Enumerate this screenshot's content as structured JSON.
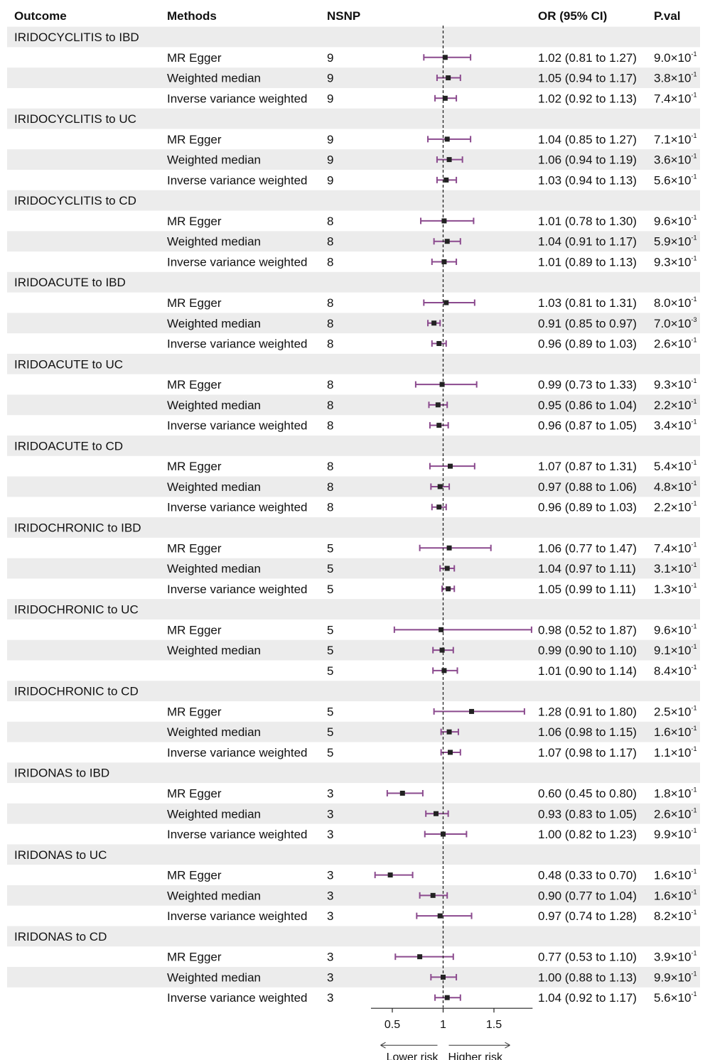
{
  "chart_data": {
    "type": "forest",
    "headers": {
      "outcome": "Outcome",
      "methods": "Methods",
      "nsnp": "NSNP",
      "or": "OR (95% CI)",
      "pval": "P.val"
    },
    "reference_line": 1,
    "xlim": [
      0.29,
      1.88
    ],
    "xticks": [
      {
        "value": 0.5,
        "label": "0.5"
      },
      {
        "value": 1,
        "label": "1"
      },
      {
        "value": 1.5,
        "label": "1.5"
      }
    ],
    "lower_label": "Lower risk",
    "higher_label": "Higher risk",
    "colors": {
      "ci": "#8B4A8E",
      "point": "#222222",
      "shade": "#ececec",
      "ref": "#222222"
    },
    "groups": [
      {
        "outcome": "IRIDOCYCLITIS to IBD",
        "rows": [
          {
            "method": "MR Egger",
            "nsnp": "9",
            "or": 1.02,
            "lo": 0.81,
            "hi": 1.27,
            "or_text": "1.02 (0.81 to 1.27)",
            "p_base": "9.0×10",
            "p_exp": "-1"
          },
          {
            "method": "Weighted median",
            "nsnp": "9",
            "or": 1.05,
            "lo": 0.94,
            "hi": 1.17,
            "or_text": "1.05 (0.94 to 1.17)",
            "p_base": "3.8×10",
            "p_exp": "-1"
          },
          {
            "method": "Inverse variance weighted",
            "nsnp": "9",
            "or": 1.02,
            "lo": 0.92,
            "hi": 1.13,
            "or_text": "1.02 (0.92 to 1.13)",
            "p_base": "7.4×10",
            "p_exp": "-1"
          }
        ]
      },
      {
        "outcome": "IRIDOCYCLITIS to UC",
        "rows": [
          {
            "method": "MR Egger",
            "nsnp": "9",
            "or": 1.04,
            "lo": 0.85,
            "hi": 1.27,
            "or_text": "1.04 (0.85 to 1.27)",
            "p_base": "7.1×10",
            "p_exp": "-1"
          },
          {
            "method": "Weighted median",
            "nsnp": "9",
            "or": 1.06,
            "lo": 0.94,
            "hi": 1.19,
            "or_text": "1.06 (0.94 to 1.19)",
            "p_base": "3.6×10",
            "p_exp": "-1"
          },
          {
            "method": "Inverse variance weighted",
            "nsnp": "9",
            "or": 1.03,
            "lo": 0.94,
            "hi": 1.13,
            "or_text": "1.03 (0.94 to 1.13)",
            "p_base": "5.6×10",
            "p_exp": "-1"
          }
        ]
      },
      {
        "outcome": "IRIDOCYCLITIS to CD",
        "rows": [
          {
            "method": "MR Egger",
            "nsnp": "8",
            "or": 1.01,
            "lo": 0.78,
            "hi": 1.3,
            "or_text": "1.01 (0.78 to 1.30)",
            "p_base": "9.6×10",
            "p_exp": "-1"
          },
          {
            "method": "Weighted median",
            "nsnp": "8",
            "or": 1.04,
            "lo": 0.91,
            "hi": 1.17,
            "or_text": "1.04 (0.91 to 1.17)",
            "p_base": "5.9×10",
            "p_exp": "-1"
          },
          {
            "method": "Inverse variance weighted",
            "nsnp": "8",
            "or": 1.01,
            "lo": 0.89,
            "hi": 1.13,
            "or_text": "1.01 (0.89 to 1.13)",
            "p_base": "9.3×10",
            "p_exp": "-1"
          }
        ]
      },
      {
        "outcome": "IRIDOACUTE to IBD",
        "rows": [
          {
            "method": "MR Egger",
            "nsnp": "8",
            "or": 1.03,
            "lo": 0.81,
            "hi": 1.31,
            "or_text": "1.03 (0.81 to 1.31)",
            "p_base": "8.0×10",
            "p_exp": "-1"
          },
          {
            "method": "Weighted median",
            "nsnp": "8",
            "or": 0.91,
            "lo": 0.85,
            "hi": 0.97,
            "or_text": "0.91 (0.85 to 0.97)",
            "p_base": "7.0×10",
            "p_exp": "-3"
          },
          {
            "method": "Inverse variance weighted",
            "nsnp": "8",
            "or": 0.96,
            "lo": 0.89,
            "hi": 1.03,
            "or_text": "0.96 (0.89 to 1.03)",
            "p_base": "2.6×10",
            "p_exp": "-1"
          }
        ]
      },
      {
        "outcome": "IRIDOACUTE to UC",
        "rows": [
          {
            "method": "MR Egger",
            "nsnp": "8",
            "or": 0.99,
            "lo": 0.73,
            "hi": 1.33,
            "or_text": "0.99 (0.73 to 1.33)",
            "p_base": "9.3×10",
            "p_exp": "-1"
          },
          {
            "method": "Weighted median",
            "nsnp": "8",
            "or": 0.95,
            "lo": 0.86,
            "hi": 1.04,
            "or_text": "0.95 (0.86 to 1.04)",
            "p_base": "2.2×10",
            "p_exp": "-1"
          },
          {
            "method": "Inverse variance weighted",
            "nsnp": "8",
            "or": 0.96,
            "lo": 0.87,
            "hi": 1.05,
            "or_text": "0.96 (0.87 to 1.05)",
            "p_base": "3.4×10",
            "p_exp": "-1"
          }
        ]
      },
      {
        "outcome": "IRIDOACUTE to CD",
        "rows": [
          {
            "method": "MR Egger",
            "nsnp": "8",
            "or": 1.07,
            "lo": 0.87,
            "hi": 1.31,
            "or_text": "1.07 (0.87 to 1.31)",
            "p_base": "5.4×10",
            "p_exp": "-1"
          },
          {
            "method": "Weighted median",
            "nsnp": "8",
            "or": 0.97,
            "lo": 0.88,
            "hi": 1.06,
            "or_text": "0.97 (0.88 to 1.06)",
            "p_base": "4.8×10",
            "p_exp": "-1"
          },
          {
            "method": "Inverse variance weighted",
            "nsnp": "8",
            "or": 0.96,
            "lo": 0.89,
            "hi": 1.03,
            "or_text": "0.96 (0.89 to 1.03)",
            "p_base": "2.2×10",
            "p_exp": "-1"
          }
        ]
      },
      {
        "outcome": "IRIDOCHRONIC to IBD",
        "rows": [
          {
            "method": "MR Egger",
            "nsnp": "5",
            "or": 1.06,
            "lo": 0.77,
            "hi": 1.47,
            "or_text": "1.06 (0.77 to 1.47)",
            "p_base": "7.4×10",
            "p_exp": "-1"
          },
          {
            "method": "Weighted median",
            "nsnp": "5",
            "or": 1.04,
            "lo": 0.97,
            "hi": 1.11,
            "or_text": "1.04 (0.97 to 1.11)",
            "p_base": "3.1×10",
            "p_exp": "-1"
          },
          {
            "method": "Inverse variance weighted",
            "nsnp": "5",
            "or": 1.05,
            "lo": 0.99,
            "hi": 1.11,
            "or_text": "1.05 (0.99 to 1.11)",
            "p_base": "1.3×10",
            "p_exp": "-1"
          }
        ]
      },
      {
        "outcome": "IRIDOCHRONIC to UC",
        "rows": [
          {
            "method": "MR Egger",
            "nsnp": "5",
            "or": 0.98,
            "lo": 0.52,
            "hi": 1.87,
            "or_text": "0.98 (0.52 to 1.87)",
            "p_base": "9.6×10",
            "p_exp": "-1"
          },
          {
            "method": "Weighted median",
            "nsnp": "5",
            "or": 0.99,
            "lo": 0.9,
            "hi": 1.1,
            "or_text": "0.99 (0.90 to 1.10)",
            "p_base": "9.1×10",
            "p_exp": "-1"
          },
          {
            "method": "",
            "nsnp": "5",
            "or": 1.01,
            "lo": 0.9,
            "hi": 1.14,
            "or_text": "1.01 (0.90 to 1.14)",
            "p_base": "8.4×10",
            "p_exp": "-1"
          }
        ]
      },
      {
        "outcome": "IRIDOCHRONIC to CD",
        "rows": [
          {
            "method": "MR Egger",
            "nsnp": "5",
            "or": 1.28,
            "lo": 0.91,
            "hi": 1.8,
            "or_text": "1.28 (0.91 to 1.80)",
            "p_base": "2.5×10",
            "p_exp": "-1"
          },
          {
            "method": "Weighted median",
            "nsnp": "5",
            "or": 1.06,
            "lo": 0.98,
            "hi": 1.15,
            "or_text": "1.06 (0.98 to 1.15)",
            "p_base": "1.6×10",
            "p_exp": "-1"
          },
          {
            "method": "Inverse variance weighted",
            "nsnp": "5",
            "or": 1.07,
            "lo": 0.98,
            "hi": 1.17,
            "or_text": "1.07 (0.98 to 1.17)",
            "p_base": "1.1×10",
            "p_exp": "-1"
          }
        ]
      },
      {
        "outcome": "IRIDONAS to IBD",
        "rows": [
          {
            "method": "MR Egger",
            "nsnp": "3",
            "or": 0.6,
            "lo": 0.45,
            "hi": 0.8,
            "or_text": "0.60 (0.45 to 0.80)",
            "p_base": "1.8×10",
            "p_exp": "-1"
          },
          {
            "method": "Weighted median",
            "nsnp": "3",
            "or": 0.93,
            "lo": 0.83,
            "hi": 1.05,
            "or_text": "0.93 (0.83 to 1.05)",
            "p_base": "2.6×10",
            "p_exp": "-1"
          },
          {
            "method": "Inverse variance weighted",
            "nsnp": "3",
            "or": 1.0,
            "lo": 0.82,
            "hi": 1.23,
            "or_text": "1.00 (0.82 to 1.23)",
            "p_base": "9.9×10",
            "p_exp": "-1"
          }
        ]
      },
      {
        "outcome": "IRIDONAS to UC",
        "rows": [
          {
            "method": "MR Egger",
            "nsnp": "3",
            "or": 0.48,
            "lo": 0.33,
            "hi": 0.7,
            "or_text": "0.48 (0.33 to 0.70)",
            "p_base": "1.6×10",
            "p_exp": "-1"
          },
          {
            "method": "Weighted median",
            "nsnp": "3",
            "or": 0.9,
            "lo": 0.77,
            "hi": 1.04,
            "or_text": "0.90 (0.77 to 1.04)",
            "p_base": "1.6×10",
            "p_exp": "-1"
          },
          {
            "method": "Inverse variance weighted",
            "nsnp": "3",
            "or": 0.97,
            "lo": 0.74,
            "hi": 1.28,
            "or_text": "0.97 (0.74 to 1.28)",
            "p_base": "8.2×10",
            "p_exp": "-1"
          }
        ]
      },
      {
        "outcome": "IRIDONAS to CD",
        "rows": [
          {
            "method": "MR Egger",
            "nsnp": "3",
            "or": 0.77,
            "lo": 0.53,
            "hi": 1.1,
            "or_text": "0.77 (0.53 to 1.10)",
            "p_base": "3.9×10",
            "p_exp": "-1"
          },
          {
            "method": "Weighted median",
            "nsnp": "3",
            "or": 1.0,
            "lo": 0.88,
            "hi": 1.13,
            "or_text": "1.00 (0.88 to 1.13)",
            "p_base": "9.9×10",
            "p_exp": "-1"
          },
          {
            "method": "Inverse variance weighted",
            "nsnp": "3",
            "or": 1.04,
            "lo": 0.92,
            "hi": 1.17,
            "or_text": "1.04 (0.92 to 1.17)",
            "p_base": "5.6×10",
            "p_exp": "-1"
          }
        ]
      }
    ]
  }
}
